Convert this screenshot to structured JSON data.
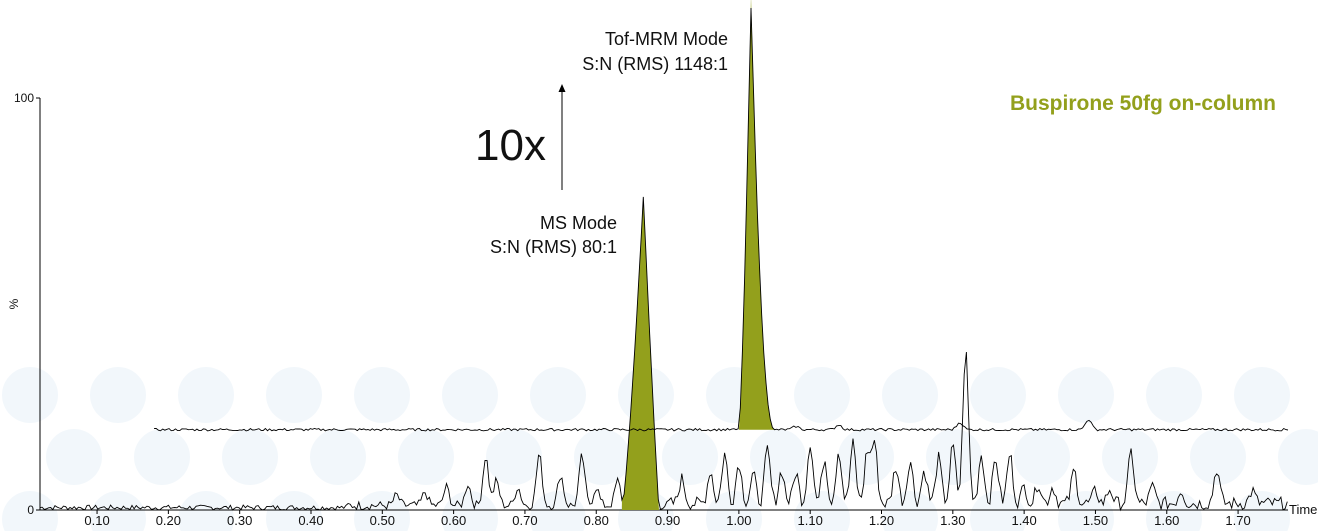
{
  "chart_data": {
    "type": "line",
    "title": "Buspirone 50fg on-column",
    "xlabel": "Time",
    "ylabel": "%",
    "xlim": [
      0.02,
      1.77
    ],
    "ylim": [
      0,
      100
    ],
    "xticks": [
      "0.10",
      "0.20",
      "0.30",
      "0.40",
      "0.50",
      "0.60",
      "0.70",
      "0.80",
      "0.90",
      "1.00",
      "1.10",
      "1.20",
      "1.30",
      "1.40",
      "1.50",
      "1.60",
      "1.70"
    ],
    "yticks": [
      "0",
      "100"
    ],
    "series": [
      {
        "trace": "ms",
        "peak": {
          "x_start": 0.836,
          "x_apex": 0.866,
          "x_end": 0.888,
          "apex_y": 76
        },
        "baseline_y": 0,
        "noise_peaks": [
          [
            0.52,
            2.5
          ],
          [
            0.56,
            3.2
          ],
          [
            0.59,
            4.5
          ],
          [
            0.62,
            5.3
          ],
          [
            0.645,
            12
          ],
          [
            0.66,
            6
          ],
          [
            0.69,
            4.5
          ],
          [
            0.72,
            12.5
          ],
          [
            0.75,
            7.5
          ],
          [
            0.78,
            12
          ],
          [
            0.8,
            4.5
          ],
          [
            0.83,
            6
          ],
          [
            0.92,
            6
          ],
          [
            0.96,
            8
          ],
          [
            0.98,
            12
          ],
          [
            1.0,
            10
          ],
          [
            1.02,
            7
          ],
          [
            1.04,
            13
          ],
          [
            1.06,
            8
          ],
          [
            1.08,
            7.5
          ],
          [
            1.1,
            15
          ],
          [
            1.12,
            11
          ],
          [
            1.14,
            13
          ],
          [
            1.16,
            14.5
          ],
          [
            1.18,
            12.5
          ],
          [
            1.19,
            15
          ],
          [
            1.22,
            9
          ],
          [
            1.24,
            10.5
          ],
          [
            1.26,
            8
          ],
          [
            1.28,
            11
          ],
          [
            1.3,
            14
          ],
          [
            1.318,
            37
          ],
          [
            1.34,
            12
          ],
          [
            1.36,
            11
          ],
          [
            1.38,
            12
          ],
          [
            1.4,
            4
          ],
          [
            1.42,
            5
          ],
          [
            1.44,
            4
          ],
          [
            1.47,
            8
          ],
          [
            1.5,
            3
          ],
          [
            1.52,
            3.5
          ],
          [
            1.55,
            12.5
          ],
          [
            1.58,
            4
          ],
          [
            1.62,
            3.2
          ],
          [
            1.67,
            8.5
          ],
          [
            1.72,
            3
          ]
        ]
      },
      {
        "trace": "tof-mrm",
        "peak": {
          "x_start": 1.0,
          "x_apex": 1.017,
          "x_end": 1.05,
          "apex_y": 125
        },
        "baseline_y": 19.5,
        "x_start": 0.18,
        "x_end": 1.77
      }
    ],
    "annotations": [
      {
        "id": "tof",
        "lines": [
          "Tof-MRM Mode",
          "S:N (RMS) 1148:1"
        ]
      },
      {
        "id": "ms",
        "lines": [
          "MS Mode",
          "S:N (RMS) 80:1"
        ]
      },
      {
        "id": "gain",
        "text": "10x"
      }
    ],
    "grid": false,
    "legend": "none",
    "colors": {
      "peak_fill": "#93a01c",
      "line": "#000000",
      "title": "#93a01c",
      "background_pattern": "#e8f0f8"
    }
  }
}
